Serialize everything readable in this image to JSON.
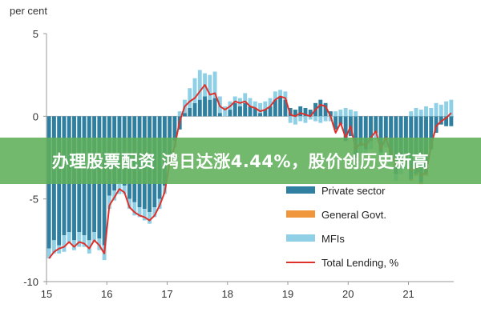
{
  "banner": {
    "text": "办理股票配资 鸿日达涨4.44%，股价创历史新高"
  },
  "colors": {
    "private": "#2e7fa0",
    "government": "#f0963c",
    "mfis": "#8fd0e6",
    "total": "#e0302a",
    "axis": "#999999",
    "zero_line": "#bbbbbb",
    "banner_bg": "#5faf5a"
  },
  "chart_data": {
    "type": "bar",
    "stacked": true,
    "ylabel": "per cent",
    "ylim": [
      -10,
      5
    ],
    "yticks": [
      5,
      0,
      -5,
      -10
    ],
    "xticks": [
      "15",
      "16",
      "17",
      "18",
      "19",
      "20",
      "21"
    ],
    "legend": {
      "placement": "bottom-right",
      "entries": [
        "Private sector",
        "General Govt.",
        "MFIs",
        "Total Lending, %"
      ]
    },
    "x": [
      "2015-01",
      "2015-02",
      "2015-03",
      "2015-04",
      "2015-05",
      "2015-06",
      "2015-07",
      "2015-08",
      "2015-09",
      "2015-10",
      "2015-11",
      "2015-12",
      "2016-01",
      "2016-02",
      "2016-03",
      "2016-04",
      "2016-05",
      "2016-06",
      "2016-07",
      "2016-08",
      "2016-09",
      "2016-10",
      "2016-11",
      "2016-12",
      "2017-01",
      "2017-02",
      "2017-03",
      "2017-04",
      "2017-05",
      "2017-06",
      "2017-07",
      "2017-08",
      "2017-09",
      "2017-10",
      "2017-11",
      "2017-12",
      "2018-01",
      "2018-02",
      "2018-03",
      "2018-04",
      "2018-05",
      "2018-06",
      "2018-07",
      "2018-08",
      "2018-09",
      "2018-10",
      "2018-11",
      "2018-12",
      "2019-01",
      "2019-02",
      "2019-03",
      "2019-04",
      "2019-05",
      "2019-06",
      "2019-07",
      "2019-08",
      "2019-09",
      "2019-10",
      "2019-11",
      "2019-12",
      "2020-01",
      "2020-02",
      "2020-03",
      "2020-04",
      "2020-05",
      "2020-06",
      "2020-07",
      "2020-08",
      "2020-09",
      "2020-10",
      "2020-11",
      "2020-12",
      "2021-01",
      "2021-02",
      "2021-03",
      "2021-04",
      "2021-05",
      "2021-06",
      "2021-07",
      "2021-08",
      "2021-09"
    ],
    "series": [
      {
        "name": "Private sector",
        "values": [
          -8.0,
          -7.5,
          -7.8,
          -7.2,
          -7.0,
          -7.5,
          -7.0,
          -7.2,
          -7.5,
          -7.0,
          -7.4,
          -7.8,
          -4.8,
          -4.5,
          -4.0,
          -4.2,
          -5.0,
          -5.2,
          -5.5,
          -5.6,
          -5.8,
          -5.5,
          -5.0,
          -4.2,
          -2.5,
          -1.5,
          -0.8,
          0.2,
          0.5,
          0.8,
          1.0,
          1.2,
          1.0,
          1.1,
          0.2,
          0.0,
          0.4,
          0.8,
          0.6,
          0.8,
          0.6,
          0.5,
          0.2,
          0.4,
          0.6,
          1.0,
          1.2,
          1.0,
          0.5,
          0.4,
          0.6,
          0.5,
          0.4,
          0.8,
          1.0,
          0.8,
          0.3,
          -0.8,
          -0.5,
          -1.5,
          -1.2,
          -2.5,
          -1.8,
          -2.0,
          -1.5,
          -1.0,
          -2.2,
          -1.5,
          -2.5,
          -3.5,
          -3.0,
          -2.8,
          -3.8,
          -3.5,
          -4.0,
          -3.5,
          -2.0,
          -1.0,
          -0.5,
          -0.6,
          -0.6
        ]
      },
      {
        "name": "General Govt.",
        "values": [
          0.0,
          0.0,
          0.0,
          0.0,
          0.0,
          0.0,
          0.0,
          0.0,
          0.0,
          0.0,
          0.0,
          0.0,
          0.0,
          0.0,
          0.0,
          0.0,
          0.0,
          0.0,
          0.0,
          0.0,
          0.0,
          0.0,
          0.0,
          0.0,
          0.0,
          0.0,
          0.0,
          0.0,
          0.0,
          0.0,
          0.0,
          0.0,
          0.0,
          0.0,
          0.0,
          0.0,
          0.0,
          0.0,
          0.0,
          0.0,
          0.0,
          0.0,
          0.0,
          0.0,
          0.0,
          0.0,
          0.0,
          0.0,
          0.0,
          0.0,
          0.0,
          0.0,
          0.0,
          0.0,
          0.0,
          0.0,
          0.0,
          0.0,
          0.0,
          0.0,
          0.0,
          0.0,
          0.0,
          0.0,
          0.0,
          0.0,
          0.0,
          0.0,
          0.0,
          0.0,
          0.0,
          0.0,
          -0.1,
          -0.1,
          -0.1,
          -0.1,
          0.0,
          0.0,
          0.0,
          0.0,
          0.0
        ]
      },
      {
        "name": "MFIs",
        "values": [
          -0.6,
          -0.8,
          -0.5,
          -1.0,
          -0.7,
          -0.6,
          -0.9,
          -0.7,
          -0.8,
          -0.6,
          -0.7,
          -0.9,
          -0.8,
          -0.6,
          -0.7,
          -0.5,
          -0.6,
          -0.8,
          -0.6,
          -0.7,
          -0.7,
          -0.6,
          -0.6,
          -0.5,
          -0.5,
          -0.4,
          0.3,
          0.8,
          1.2,
          1.5,
          1.8,
          1.4,
          1.5,
          1.6,
          1.0,
          0.6,
          0.5,
          0.4,
          0.5,
          0.6,
          0.5,
          0.4,
          0.6,
          0.5,
          0.5,
          0.5,
          0.4,
          0.5,
          -0.4,
          -0.5,
          -0.3,
          -0.4,
          -0.2,
          -0.3,
          -0.4,
          -0.3,
          -0.3,
          0.3,
          0.4,
          0.5,
          0.4,
          0.3,
          -0.4,
          -0.3,
          -0.5,
          -0.4,
          -0.3,
          -0.4,
          -0.3,
          -0.4,
          -0.5,
          -0.4,
          0.3,
          0.5,
          0.4,
          0.6,
          0.5,
          0.8,
          0.7,
          0.9,
          1.0
        ]
      }
    ],
    "line": {
      "name": "Total Lending, %",
      "values": [
        -8.6,
        -8.2,
        -8.0,
        -7.9,
        -7.6,
        -7.9,
        -7.6,
        -7.7,
        -8.0,
        -7.5,
        -7.8,
        -8.3,
        -5.4,
        -4.9,
        -4.4,
        -4.6,
        -5.5,
        -5.8,
        -6.0,
        -6.1,
        -6.3,
        -6.0,
        -5.4,
        -4.6,
        -2.8,
        -1.8,
        -0.3,
        0.6,
        0.9,
        1.1,
        1.5,
        1.9,
        1.3,
        1.4,
        0.6,
        0.4,
        0.6,
        0.9,
        0.8,
        0.9,
        0.6,
        0.5,
        0.3,
        0.4,
        0.6,
        1.0,
        1.2,
        1.1,
        0.1,
        0.0,
        0.2,
        0.1,
        0.0,
        0.4,
        0.7,
        0.6,
        0.0,
        -1.0,
        -0.4,
        -1.3,
        -0.6,
        -2.0,
        -1.6,
        -1.8,
        -1.3,
        -0.9,
        -2.0,
        -1.3,
        -2.2,
        -3.0,
        -2.8,
        -2.6,
        -3.3,
        -3.0,
        -3.6,
        -3.4,
        -1.8,
        -0.6,
        -0.3,
        -0.1,
        0.2
      ]
    }
  }
}
